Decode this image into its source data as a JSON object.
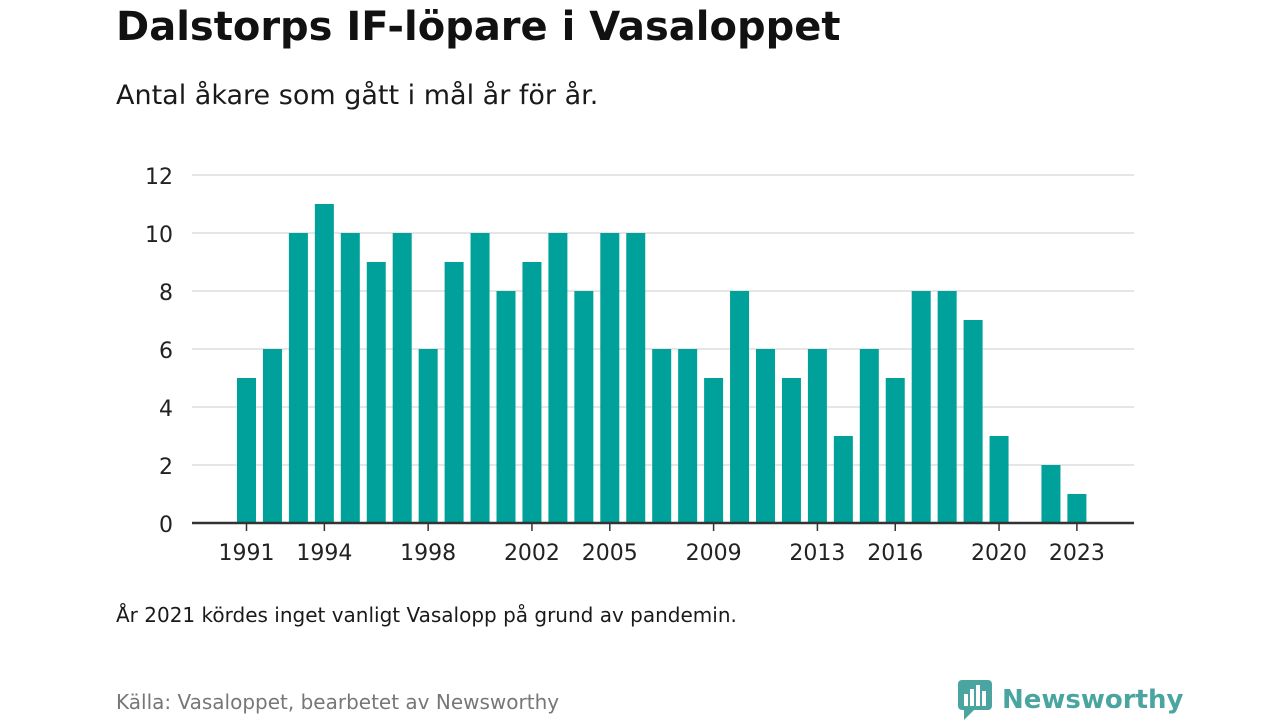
{
  "header": {
    "title": "Dalstorps IF-löpare i Vasaloppet",
    "subtitle": "Antal åkare som gått i mål år för år."
  },
  "footer": {
    "note": "År 2021 kördes inget vanligt Vasalopp på grund av pandemin.",
    "source": "Källa: Vasaloppet, bearbetet av Newsworthy",
    "brand": "Newsworthy",
    "brand_icon": "newsworthy-logo-icon"
  },
  "colors": {
    "bar": "#00a19a",
    "grid": "#dddddd",
    "axis": "#333333",
    "brand": "#4aa5a0"
  },
  "chart_data": {
    "type": "bar",
    "categories": [
      "1991",
      "1992",
      "1993",
      "1994",
      "1995",
      "1996",
      "1997",
      "1998",
      "1999",
      "2000",
      "2001",
      "2002",
      "2003",
      "2004",
      "2005",
      "2006",
      "2007",
      "2008",
      "2009",
      "2010",
      "2011",
      "2012",
      "2013",
      "2014",
      "2015",
      "2016",
      "2017",
      "2018",
      "2019",
      "2020",
      "2021",
      "2022",
      "2023"
    ],
    "values": [
      5,
      6,
      10,
      11,
      10,
      9,
      10,
      6,
      9,
      10,
      8,
      9,
      10,
      8,
      10,
      10,
      6,
      6,
      5,
      8,
      6,
      5,
      6,
      3,
      6,
      5,
      8,
      8,
      7,
      3,
      0,
      2,
      1
    ],
    "x_tick_labels": [
      "1991",
      "1994",
      "1998",
      "2002",
      "2005",
      "2009",
      "2013",
      "2016",
      "2020",
      "2023"
    ],
    "y_ticks": [
      "0",
      "2",
      "4",
      "6",
      "8",
      "10",
      "12"
    ],
    "ylim": [
      0,
      12
    ],
    "grid": true,
    "title": "Dalstorps IF-löpare i Vasaloppet",
    "subtitle": "Antal åkare som gått i mål år för år.",
    "xlabel": "",
    "ylabel": ""
  }
}
